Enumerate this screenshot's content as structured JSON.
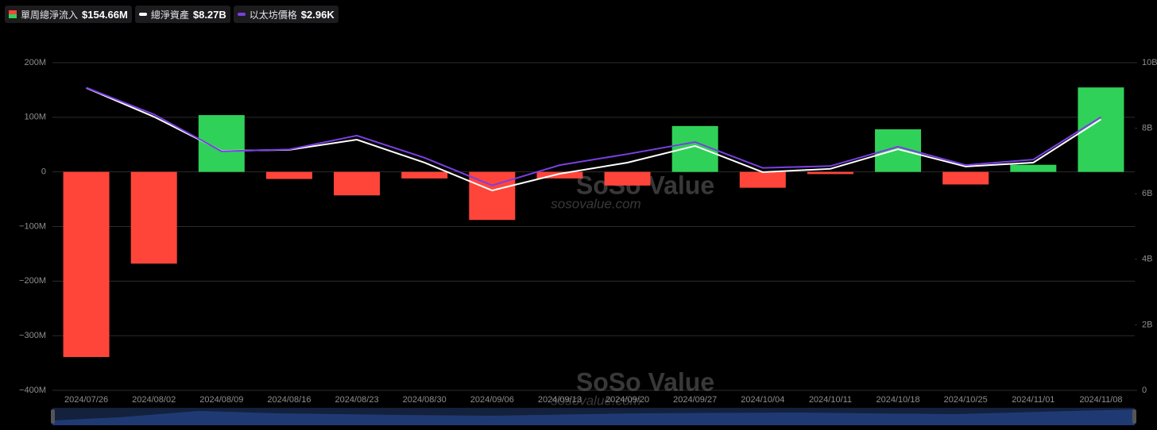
{
  "chart_data": {
    "type": "bar-line",
    "categories": [
      "2024/07/26",
      "2024/08/02",
      "2024/08/09",
      "2024/08/16",
      "2024/08/23",
      "2024/08/30",
      "2024/09/06",
      "2024/09/13",
      "2024/09/20",
      "2024/09/27",
      "2024/10/04",
      "2024/10/11",
      "2024/10/18",
      "2024/10/25",
      "2024/11/01",
      "2024/11/08"
    ],
    "series": [
      {
        "name": "單周總淨流入",
        "legend_value": "$154.66M",
        "type": "bar",
        "positive_color": "#30d158",
        "negative_color": "#ff453a",
        "values": [
          -339,
          -168,
          104,
          -13,
          -43,
          -12,
          -88,
          -12,
          -25,
          84,
          -29,
          -4,
          78,
          -23,
          13,
          154.66
        ]
      },
      {
        "name": "總淨資產",
        "legend_value": "$8.27B",
        "type": "line",
        "axis": "y2",
        "color": "#ffffff",
        "values": [
          9.23,
          8.35,
          7.31,
          7.34,
          7.65,
          6.95,
          6.1,
          6.61,
          6.95,
          7.46,
          6.66,
          6.76,
          7.36,
          6.83,
          6.95,
          8.27
        ]
      },
      {
        "name": "以太坊價格",
        "legend_value": "$2.96K",
        "type": "line",
        "axis": "y3",
        "color": "#7b3fe4",
        "values": [
          3.28,
          2.99,
          2.59,
          2.61,
          2.76,
          2.52,
          2.22,
          2.44,
          2.56,
          2.69,
          2.41,
          2.43,
          2.64,
          2.44,
          2.5,
          2.96
        ]
      }
    ],
    "ylim": [
      -400,
      200
    ],
    "yticks": [
      {
        "value": -400,
        "label": "−400M"
      },
      {
        "value": -300,
        "label": "−300M"
      },
      {
        "value": -200,
        "label": "−200M"
      },
      {
        "value": -100,
        "label": "−100M"
      },
      0,
      {
        "value": 100,
        "label": "100M"
      },
      {
        "value": 200,
        "label": "200M"
      }
    ],
    "y2lim": [
      0,
      10
    ],
    "y2ticks": [
      0,
      {
        "value": 2,
        "label": "2B"
      },
      {
        "value": 4,
        "label": "4B"
      },
      {
        "value": 6,
        "label": "6B"
      },
      {
        "value": 8,
        "label": "8B"
      },
      {
        "value": 10,
        "label": "10B"
      }
    ],
    "y3lim": [
      0,
      3.55
    ],
    "grid": true,
    "watermark": {
      "brand": "SoSo Value",
      "site": "sosovalue.com"
    }
  }
}
